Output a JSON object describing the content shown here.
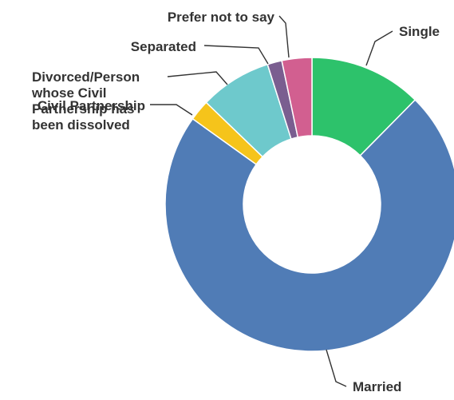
{
  "chart_data": {
    "type": "donut",
    "unit": "percent",
    "legend": "none",
    "start_angle_deg": 0,
    "direction": "clockwise",
    "categories": [
      "Single",
      "Married",
      "Civil Partnership",
      "Divorced/Person whose Civil Partnership has been dissolved",
      "Separated",
      "Prefer not to say"
    ],
    "values": [
      12.4,
      72.5,
      2.3,
      7.9,
      1.6,
      3.3
    ],
    "colors": [
      "#2dc26b",
      "#507cb6",
      "#f5c41b",
      "#6ec9cc",
      "#7a5e90",
      "#d25f90"
    ],
    "labels": [
      {
        "lines": [
          "Single"
        ]
      },
      {
        "lines": [
          "Married"
        ]
      },
      {
        "lines": [
          "Civil Partnership"
        ]
      },
      {
        "lines": [
          "Divorced/Person",
          "whose Civil",
          "Partnership has",
          "been dissolved"
        ]
      },
      {
        "lines": [
          "Separated"
        ]
      },
      {
        "lines": [
          "Prefer not to say"
        ]
      }
    ]
  }
}
